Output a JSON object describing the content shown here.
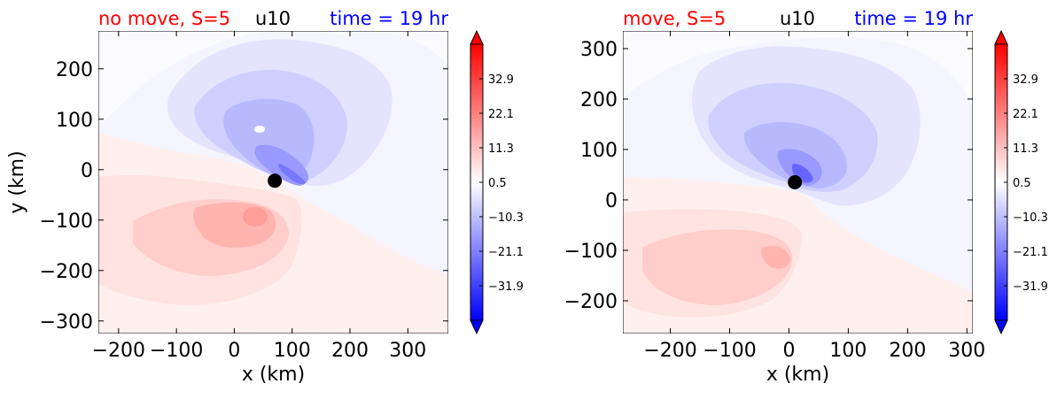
{
  "chart_data": [
    {
      "type": "heatmap",
      "title_left": "no move, S=5",
      "title_center": "u10",
      "title_right": "time = 19 hr",
      "xlabel": "x (km)",
      "ylabel": "y (km)",
      "xlim": [
        -235,
        370
      ],
      "ylim": [
        -325,
        275
      ],
      "xticks": [
        -200,
        -100,
        0,
        100,
        200,
        300
      ],
      "yticks": [
        200,
        100,
        0,
        -100,
        -200,
        -300
      ],
      "xtick_labels": [
        "−200",
        "−100",
        "0",
        "100",
        "200",
        "300"
      ],
      "ytick_labels": [
        "200",
        "100",
        "0",
        "−100",
        "−200",
        "−300"
      ],
      "center_marker": [
        70,
        -22
      ],
      "colorbar": {
        "range": [
          -42.7,
          43.7
        ],
        "ticks": [
          32.9,
          22.1,
          11.3,
          0.5,
          -10.3,
          -21.1,
          -31.9
        ],
        "tick_labels": [
          "32.9",
          "22.1",
          "11.3",
          "0.5",
          "−10.3",
          "−21.1",
          "−31.9"
        ],
        "colormap": "bwr"
      }
    },
    {
      "type": "heatmap",
      "title_left": "move, S=5",
      "title_center": "u10",
      "title_right": "time = 19 hr",
      "xlabel": "x (km)",
      "ylabel": "",
      "xlim": [
        -280,
        310
      ],
      "ylim": [
        -265,
        335
      ],
      "xticks": [
        -200,
        -100,
        0,
        100,
        200,
        300
      ],
      "yticks": [
        300,
        200,
        100,
        0,
        -100,
        -200
      ],
      "xtick_labels": [
        "−200",
        "−100",
        "0",
        "100",
        "200",
        "300"
      ],
      "ytick_labels": [
        "300",
        "200",
        "100",
        "0",
        "−100",
        "−200"
      ],
      "center_marker": [
        10,
        35
      ],
      "colorbar": {
        "range": [
          -42.7,
          43.7
        ],
        "ticks": [
          32.9,
          22.1,
          11.3,
          0.5,
          -10.3,
          -21.1,
          -31.9
        ],
        "tick_labels": [
          "32.9",
          "22.1",
          "11.3",
          "0.5",
          "−10.3",
          "−21.1",
          "−31.9"
        ],
        "colormap": "bwr"
      }
    }
  ],
  "colors": {
    "title_left": "#ff0000",
    "title_center": "#000000",
    "title_right": "#0000ff",
    "marker": "#000000"
  }
}
